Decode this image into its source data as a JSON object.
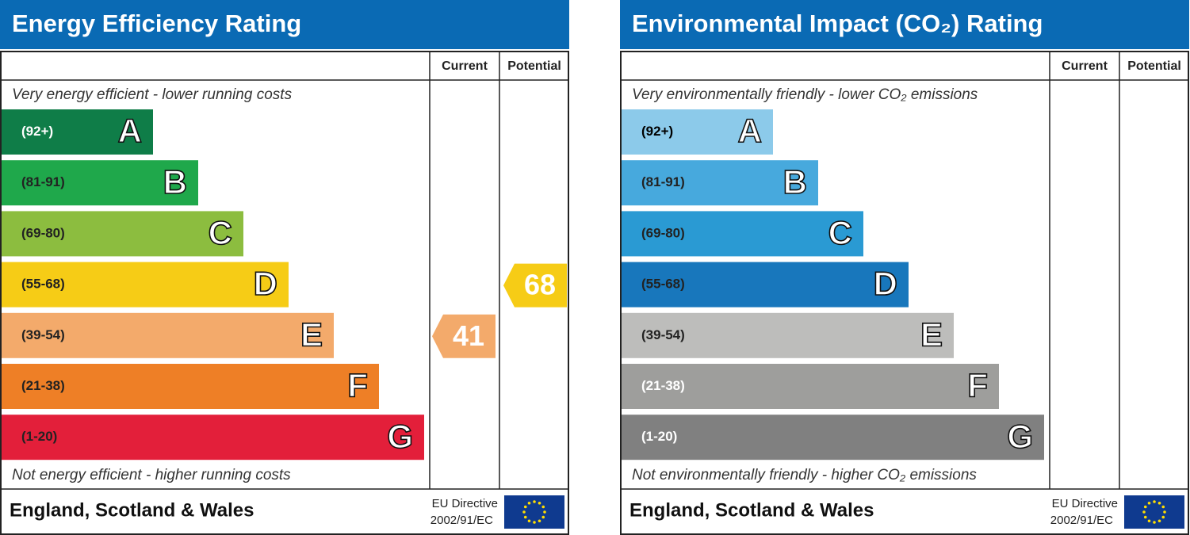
{
  "panels": [
    {
      "title": "Energy Efficiency Rating",
      "columns": [
        "Current",
        "Potential"
      ],
      "top_note": "Very energy efficient - lower running costs",
      "bottom_note": "Not energy efficient - higher running costs",
      "bands": [
        {
          "range": "(92+)",
          "letter": "A",
          "color": "#0f7d48",
          "text_color": "#ffffff"
        },
        {
          "range": "(81-91)",
          "letter": "B",
          "color": "#1fa84b",
          "text_color": "#222222"
        },
        {
          "range": "(69-80)",
          "letter": "C",
          "color": "#8cbd3f",
          "text_color": "#222222"
        },
        {
          "range": "(55-68)",
          "letter": "D",
          "color": "#f6cc16",
          "text_color": "#222222"
        },
        {
          "range": "(39-54)",
          "letter": "E",
          "color": "#f3aa6b",
          "text_color": "#222222"
        },
        {
          "range": "(21-38)",
          "letter": "F",
          "color": "#ee7f26",
          "text_color": "#222222"
        },
        {
          "range": "(1-20)",
          "letter": "G",
          "color": "#e31f3a",
          "text_color": "#222222"
        }
      ],
      "current": 41,
      "potential": 68,
      "footer": "England, Scotland & Wales",
      "directive": [
        "EU Directive",
        "2002/91/EC"
      ]
    },
    {
      "title": "Environmental Impact (CO₂) Rating",
      "columns": [
        "Current",
        "Potential"
      ],
      "top_note": "Very environmentally friendly - lower CO₂ emissions",
      "bottom_note": "Not environmentally friendly - higher CO₂ emissions",
      "bands": [
        {
          "range": "(92+)",
          "letter": "A",
          "color": "#8ccaea",
          "text_color": "#000000"
        },
        {
          "range": "(81-91)",
          "letter": "B",
          "color": "#47a9dd",
          "text_color": "#222222"
        },
        {
          "range": "(69-80)",
          "letter": "C",
          "color": "#2a9ad3",
          "text_color": "#222222"
        },
        {
          "range": "(55-68)",
          "letter": "D",
          "color": "#1877bc",
          "text_color": "#222222"
        },
        {
          "range": "(39-54)",
          "letter": "E",
          "color": "#bdbdbb",
          "text_color": "#222222"
        },
        {
          "range": "(21-38)",
          "letter": "F",
          "color": "#9e9e9c",
          "text_color": "#ffffff"
        },
        {
          "range": "(1-20)",
          "letter": "G",
          "color": "#808080",
          "text_color": "#ffffff"
        }
      ],
      "footer": "England, Scotland & Wales",
      "directive": [
        "EU Directive",
        "2002/91/EC"
      ]
    }
  ]
}
